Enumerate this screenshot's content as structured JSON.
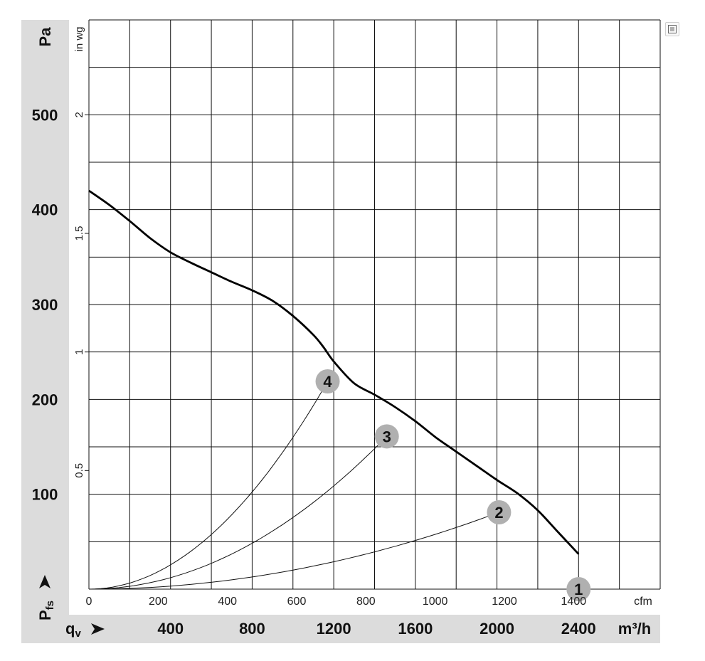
{
  "chart_data": {
    "type": "line",
    "pressure_axis": {
      "unit": "Pa",
      "symbol": "P",
      "symbol_sub": "fs",
      "range": [
        0,
        600
      ],
      "ticks": [
        100,
        200,
        300,
        400,
        500
      ],
      "tick_labels": [
        "100",
        "200",
        "300",
        "400",
        "500"
      ]
    },
    "inwg_axis": {
      "unit": "in wg",
      "range": [
        0,
        2.4
      ],
      "ticks": [
        0.5,
        1,
        1.5,
        2
      ],
      "tick_labels": [
        "0.5",
        "1",
        "1.5",
        "2"
      ]
    },
    "cfm_axis": {
      "unit": "cfm",
      "range": [
        0,
        1650
      ],
      "ticks": [
        0,
        200,
        400,
        600,
        800,
        1000,
        1200,
        1400
      ],
      "tick_labels": [
        "0",
        "200",
        "400",
        "600",
        "800",
        "1000",
        "1200",
        "1400"
      ]
    },
    "flow_axis": {
      "unit": "m³/h",
      "symbol": "q",
      "symbol_sub": "v",
      "range": [
        0,
        2800
      ],
      "ticks": [
        400,
        800,
        1200,
        1600,
        2000,
        2400
      ],
      "tick_labels": [
        "400",
        "800",
        "1200",
        "1600",
        "2000",
        "2400"
      ]
    },
    "grid": true,
    "series": [
      {
        "role": "fan-curve",
        "x": [
          0,
          100,
          200,
          300,
          400,
          500,
          600,
          700,
          800,
          900,
          1000,
          1100,
          1150,
          1200,
          1300,
          1400,
          1500,
          1600,
          1700,
          1800,
          1900,
          2000,
          2100,
          2200,
          2300,
          2400
        ],
        "y": [
          420,
          405,
          388,
          370,
          355,
          344,
          334,
          324,
          315,
          304,
          288,
          268,
          255,
          240,
          217,
          205,
          192,
          177,
          160,
          145,
          130,
          115,
          101,
          83,
          60,
          37
        ]
      }
    ],
    "system_curves": [
      {
        "id": "1",
        "point": [
          2400,
          0
        ]
      },
      {
        "id": "2",
        "point": [
          2010,
          81
        ]
      },
      {
        "id": "3",
        "point": [
          1460,
          161
        ]
      },
      {
        "id": "4",
        "point": [
          1170,
          219
        ]
      }
    ]
  },
  "toolbar": {
    "export_icon": "export-icon"
  }
}
